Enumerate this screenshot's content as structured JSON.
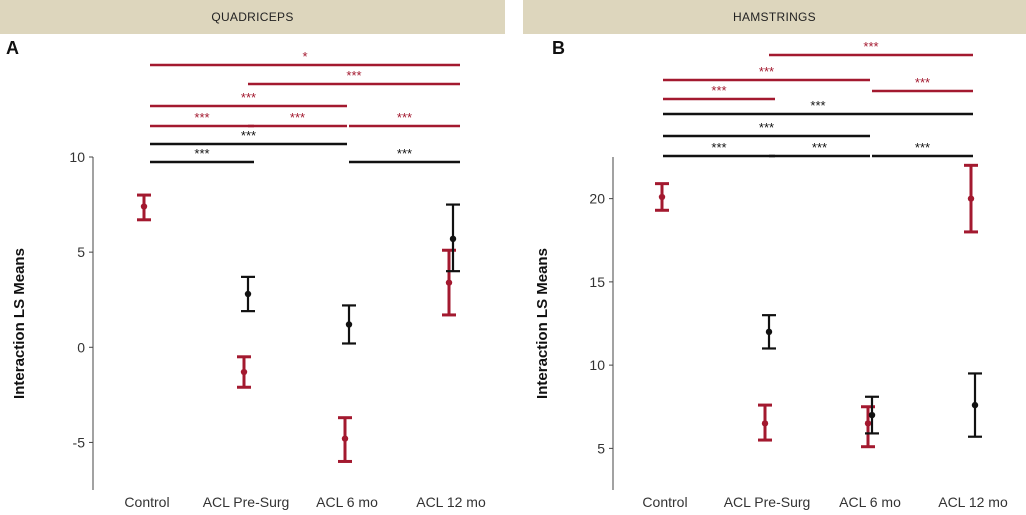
{
  "header": {
    "left": "QUADRICEPS",
    "right": "HAMSTRINGS"
  },
  "colors": {
    "group1": "#a3192f",
    "group2": "#111111",
    "axis": "#444444"
  },
  "chart_data": [
    {
      "type": "scatter",
      "panel_label": "A",
      "title": "QUADRICEPS",
      "xlabel": "",
      "ylabel": "Interaction LS Means",
      "categories": [
        "Control",
        "ACL Pre-Surg",
        "ACL 6 mo",
        "ACL 12 mo"
      ],
      "ylim": [
        -7.5,
        10
      ],
      "yticks": [
        10,
        5,
        0,
        -5
      ],
      "ytick_labels": [
        "10",
        "5",
        "0",
        "-5"
      ],
      "series": [
        {
          "name": "red",
          "color": "#a3192f",
          "points": [
            {
              "cat": 0,
              "mean": 7.4,
              "low": 6.7,
              "high": 8.0
            },
            {
              "cat": 1,
              "mean": -1.3,
              "low": -2.1,
              "high": -0.5
            },
            {
              "cat": 2,
              "mean": -4.8,
              "low": -6.0,
              "high": -3.7
            },
            {
              "cat": 3,
              "mean": 3.4,
              "low": 1.7,
              "high": 5.1
            }
          ]
        },
        {
          "name": "black",
          "color": "#111111",
          "points": [
            {
              "cat": 1,
              "mean": 2.8,
              "low": 1.9,
              "high": 3.7
            },
            {
              "cat": 2,
              "mean": 1.2,
              "low": 0.2,
              "high": 2.2
            },
            {
              "cat": 3,
              "mean": 5.7,
              "low": 4.0,
              "high": 7.5
            }
          ]
        }
      ],
      "significance": [
        {
          "from": 0,
          "to": 3,
          "color": "red",
          "label": "*"
        },
        {
          "from": 1,
          "to": 3,
          "color": "red",
          "label": "***"
        },
        {
          "from": 0,
          "to": 2,
          "color": "red",
          "label": "***"
        },
        {
          "from": 0,
          "to": 1,
          "color": "red",
          "label": "***"
        },
        {
          "from": 1,
          "to": 2,
          "color": "red",
          "label": "***"
        },
        {
          "from": 2,
          "to": 3,
          "color": "red",
          "label": "***"
        },
        {
          "from": 0,
          "to": 2,
          "color": "black",
          "label": "***"
        },
        {
          "from": 0,
          "to": 1,
          "color": "black",
          "label": "***"
        },
        {
          "from": 2,
          "to": 3,
          "color": "black",
          "label": "***"
        }
      ]
    },
    {
      "type": "scatter",
      "panel_label": "B",
      "title": "HAMSTRINGS",
      "xlabel": "",
      "ylabel": "Interaction LS Means",
      "categories": [
        "Control",
        "ACL Pre-Surg",
        "ACL 6 mo",
        "ACL 12 mo"
      ],
      "ylim": [
        2.5,
        22.5
      ],
      "yticks": [
        20,
        15,
        10,
        5
      ],
      "ytick_labels": [
        "20",
        "15",
        "10",
        "5"
      ],
      "series": [
        {
          "name": "red",
          "color": "#a3192f",
          "points": [
            {
              "cat": 0,
              "mean": 20.1,
              "low": 19.3,
              "high": 20.9
            },
            {
              "cat": 1,
              "mean": 6.5,
              "low": 5.5,
              "high": 7.6
            },
            {
              "cat": 2,
              "mean": 6.5,
              "low": 5.1,
              "high": 7.5
            },
            {
              "cat": 3,
              "mean": 20.0,
              "low": 18.0,
              "high": 22.0
            }
          ]
        },
        {
          "name": "black",
          "color": "#111111",
          "points": [
            {
              "cat": 1,
              "mean": 12.0,
              "low": 11.0,
              "high": 13.0
            },
            {
              "cat": 2,
              "mean": 7.0,
              "low": 5.9,
              "high": 8.1
            },
            {
              "cat": 3,
              "mean": 7.6,
              "low": 5.7,
              "high": 9.5
            }
          ]
        }
      ],
      "significance": [
        {
          "from": 1,
          "to": 3,
          "color": "red",
          "label": "***"
        },
        {
          "from": 0,
          "to": 2,
          "color": "red",
          "label": "***"
        },
        {
          "from": 2,
          "to": 3,
          "color": "red",
          "label": "***"
        },
        {
          "from": 0,
          "to": 1,
          "color": "red",
          "label": "***"
        },
        {
          "from": 0,
          "to": 3,
          "color": "black",
          "label": "***"
        },
        {
          "from": 0,
          "to": 2,
          "color": "black",
          "label": "***"
        },
        {
          "from": 0,
          "to": 1,
          "color": "black",
          "label": "***"
        },
        {
          "from": 1,
          "to": 2,
          "color": "black",
          "label": "***"
        },
        {
          "from": 2,
          "to": 3,
          "color": "black",
          "label": "***"
        }
      ]
    }
  ]
}
